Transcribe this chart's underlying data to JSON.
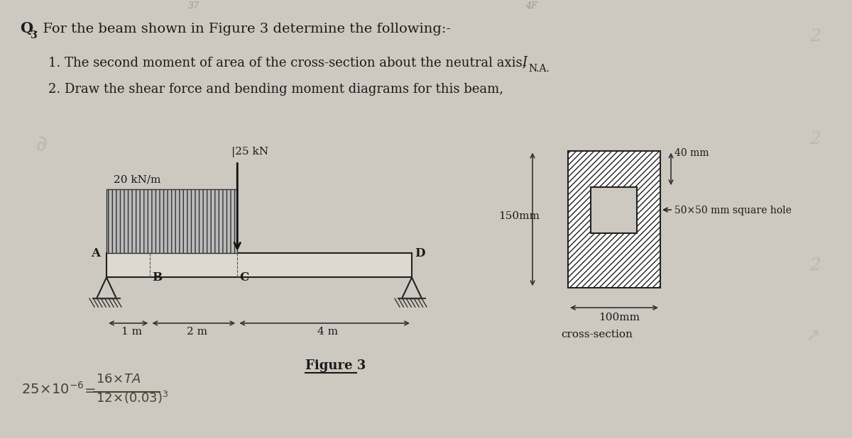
{
  "title_q": "Q",
  "title_q_sub": "3",
  "title_rest": ". For the beam shown in Figure 3 determine the following:-",
  "item1_pre": "1. The second moment of area of the cross-section about the neutral axis, ",
  "item1_I": "I",
  "item1_sub": "N.A.",
  "item2": "2. Draw the shear force and bending moment diagrams for this beam,",
  "fig_label": "Figure 3",
  "udl_label": "20 kN/m",
  "point_load_label": "|25 kN",
  "dim_1m": "1 m",
  "dim_2m": "2 m",
  "dim_4m": "4 m",
  "label_A": "A",
  "label_B": "B",
  "label_C": "C",
  "label_D": "D",
  "cs_height_label": "150mm",
  "cs_width_label": "100mm",
  "cs_hole_label": "50×50 mm square hole",
  "cs_top_label": "40 mm",
  "cs_caption": "cross-section",
  "pencil1": "37",
  "pencil2": "4F",
  "bg_color": "#cdc8c0",
  "text_color": "#1a1a1a",
  "beam_fill": "#ddd8d0",
  "udl_fill": "#aaaaaa"
}
